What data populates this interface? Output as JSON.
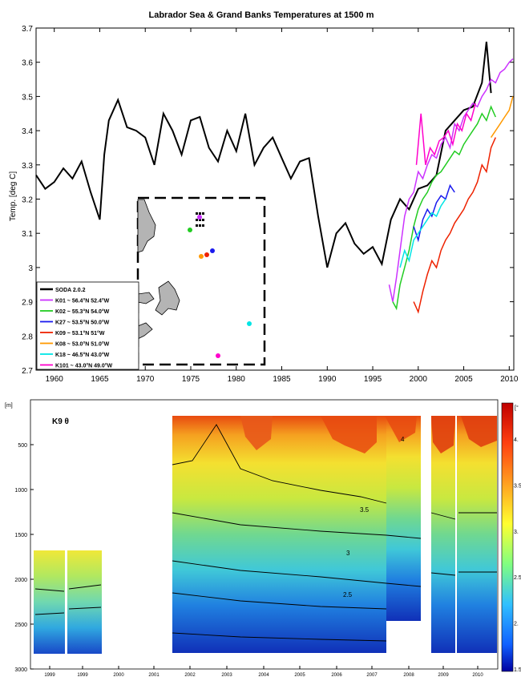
{
  "chart_data": [
    {
      "type": "line",
      "title": "Labrador Sea & Grand Banks Temperatures at 1500 m",
      "ylabel": "Temp. [deg C]",
      "xlabel": "",
      "xlim": [
        1958,
        2010.5
      ],
      "ylim": [
        2.7,
        3.7
      ],
      "xticks": [
        1960,
        1965,
        1970,
        1975,
        1980,
        1985,
        1990,
        1995,
        2000,
        2005,
        2010
      ],
      "yticks": [
        2.7,
        2.8,
        2.9,
        3,
        3.1,
        3.2,
        3.3,
        3.4,
        3.5,
        3.6,
        3.7
      ],
      "grid": false,
      "legend_position": "bottom-left",
      "series": [
        {
          "name": "SODA 2.0.2",
          "color": "#000000",
          "x": [
            1958,
            1959,
            1960,
            1961,
            1962,
            1963,
            1964,
            1965,
            1965.5,
            1966,
            1967,
            1968,
            1969,
            1970,
            1971,
            1972,
            1973,
            1974,
            1975,
            1976,
            1977,
            1978,
            1979,
            1980,
            1981,
            1982,
            1983,
            1984,
            1985,
            1986,
            1987,
            1988,
            1989,
            1990,
            1991,
            1992,
            1993,
            1994,
            1995,
            1996,
            1997,
            1998,
            1999,
            2000,
            2001,
            2002,
            2003,
            2004,
            2005,
            2006,
            2007,
            2007.5,
            2008
          ],
          "y": [
            3.27,
            3.23,
            3.25,
            3.29,
            3.26,
            3.31,
            3.22,
            3.14,
            3.33,
            3.43,
            3.49,
            3.41,
            3.4,
            3.38,
            3.3,
            3.45,
            3.4,
            3.33,
            3.43,
            3.44,
            3.35,
            3.31,
            3.4,
            3.34,
            3.45,
            3.3,
            3.35,
            3.38,
            3.32,
            3.26,
            3.31,
            3.32,
            3.15,
            3.0,
            3.1,
            3.13,
            3.07,
            3.04,
            3.06,
            3.01,
            3.14,
            3.2,
            3.17,
            3.23,
            3.24,
            3.27,
            3.4,
            3.43,
            3.46,
            3.47,
            3.54,
            3.66,
            3.51
          ]
        },
        {
          "name": "K01 ~ 56.4°N 52.4°W",
          "color": "#cc33ff",
          "x": [
            1996.8,
            1997.2,
            1997.6,
            1998,
            1998.5,
            1999,
            1999.5,
            2000,
            2000.5,
            2001,
            2001.5,
            2002,
            2002.5,
            2003,
            2003.5,
            2004,
            2004.5,
            2005,
            2005.5,
            2006,
            2006.5,
            2007,
            2007.5,
            2008,
            2008.5,
            2009,
            2009.5,
            2010,
            2010.4
          ],
          "y": [
            2.95,
            2.9,
            2.97,
            3.05,
            3.15,
            3.2,
            3.22,
            3.28,
            3.26,
            3.3,
            3.33,
            3.32,
            3.36,
            3.38,
            3.35,
            3.42,
            3.4,
            3.44,
            3.46,
            3.48,
            3.47,
            3.5,
            3.52,
            3.55,
            3.54,
            3.57,
            3.58,
            3.6,
            3.61
          ]
        },
        {
          "name": "K02 ~ 55.3°N 54.0°W",
          "color": "#22cc22",
          "x": [
            1997.2,
            1997.6,
            1998,
            1998.5,
            1999,
            1999.5,
            2000,
            2000.5,
            2001,
            2001.5,
            2002,
            2002.5,
            2003,
            2003.5,
            2004,
            2004.5,
            2005,
            2005.5,
            2006,
            2006.5,
            2007,
            2007.5,
            2008,
            2008.5
          ],
          "y": [
            2.9,
            2.88,
            2.95,
            3.0,
            3.05,
            3.12,
            3.17,
            3.2,
            3.22,
            3.25,
            3.27,
            3.28,
            3.3,
            3.32,
            3.34,
            3.33,
            3.36,
            3.38,
            3.4,
            3.42,
            3.45,
            3.43,
            3.47,
            3.44
          ]
        },
        {
          "name": "K27 ~ 53.5°N 50.0°W",
          "color": "#1a1aee",
          "x": [
            1999.5,
            2000,
            2000.5,
            2001,
            2001.5,
            2002,
            2002.5,
            2003,
            2003.5,
            2004
          ],
          "y": [
            3.12,
            3.08,
            3.14,
            3.17,
            3.15,
            3.19,
            3.21,
            3.2,
            3.24,
            3.22
          ]
        },
        {
          "name": "K09 ~ 53.1°N 51°W",
          "color": "#ee2200",
          "x": [
            1999.5,
            2000,
            2000.5,
            2001,
            2001.5,
            2002,
            2002.5,
            2003,
            2003.5,
            2004,
            2004.5,
            2005,
            2005.5,
            2006,
            2006.5,
            2007,
            2007.5,
            2008,
            2008.5
          ],
          "y": [
            2.9,
            2.87,
            2.93,
            2.98,
            3.02,
            3.0,
            3.05,
            3.08,
            3.1,
            3.13,
            3.15,
            3.17,
            3.2,
            3.22,
            3.25,
            3.3,
            3.28,
            3.35,
            3.38
          ]
        },
        {
          "name": "K08 ~ 53.0°N 51.0°W",
          "color": "#ff9900",
          "x": [
            2008,
            2008.5,
            2009,
            2009.5,
            2010,
            2010.4
          ],
          "y": [
            3.38,
            3.4,
            3.42,
            3.44,
            3.46,
            3.5
          ]
        },
        {
          "name": "K18 ~ 46.5°N 43.0°W",
          "color": "#00e5e5",
          "x": [
            1998,
            1998.5,
            1999,
            1999.5,
            2000,
            2000.5,
            2001,
            2001.5,
            2002,
            2002.5,
            2003
          ],
          "y": [
            3.0,
            3.05,
            3.02,
            3.08,
            3.1,
            3.12,
            3.14,
            3.16,
            3.15,
            3.18,
            3.2
          ]
        },
        {
          "name": "K101 ~ 43.0°N 49.0°W",
          "color": "#ff00cc",
          "x": [
            1999.8,
            2000.3,
            2000.8,
            2001.3,
            2001.8,
            2002.3,
            2002.8,
            2003.3,
            2003.8,
            2004.3,
            2004.8,
            2005.3,
            2005.8,
            2006.3
          ],
          "y": [
            3.3,
            3.45,
            3.3,
            3.35,
            3.33,
            3.37,
            3.38,
            3.4,
            3.36,
            3.42,
            3.4,
            3.45,
            3.43,
            3.48
          ]
        }
      ],
      "inset_map": {
        "stations_color_order": [
          "#cc33ff",
          "#22cc22",
          "#1a1aee",
          "#ee2200",
          "#ff9900",
          "#00e5e5",
          "#ff00cc"
        ]
      }
    },
    {
      "type": "heatmap",
      "title": "K9 θ",
      "ylabel": "[m]",
      "y_range_m": [
        0,
        3000
      ],
      "yticks": [
        500,
        1000,
        1500,
        2000,
        2500,
        3000
      ],
      "xticks": [
        "1999",
        "1999",
        "2000",
        "2001",
        "2002",
        "2003",
        "2004",
        "2005",
        "2006",
        "2007",
        "2008",
        "2009",
        "2010"
      ],
      "colorbar": {
        "min": 1.5,
        "max": 4.5,
        "ticks": [
          "4.",
          "3.5",
          "3.",
          "2.5",
          "2.",
          "1.5"
        ],
        "unit_label": "[°"
      },
      "contour_labels": [
        "4",
        "3.5",
        "3",
        "2.5"
      ],
      "colors": {
        "warm": "#e04010",
        "mid": "#f0e020",
        "cool": "#30a0e0",
        "cold": "#1030c0"
      }
    }
  ]
}
